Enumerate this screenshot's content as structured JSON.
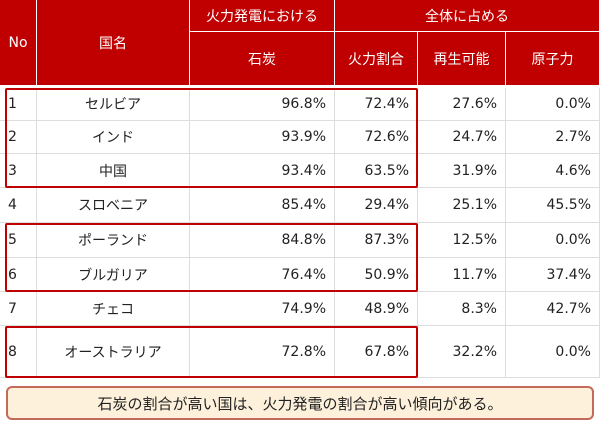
{
  "table": {
    "header": {
      "no": "No",
      "country": "国名",
      "group1": "火力発電における",
      "group2": "全体に占める",
      "columns": [
        "石炭",
        "火力割合",
        "再生可能",
        "原子力"
      ]
    },
    "rows": [
      [
        "1",
        "セルビア",
        "96.8%",
        "72.4%",
        "27.6%",
        "0.0%"
      ],
      [
        "2",
        "インド",
        "93.9%",
        "72.6%",
        "24.7%",
        "2.7%"
      ],
      [
        "3",
        "中国",
        "93.4%",
        "63.5%",
        "31.9%",
        "4.6%"
      ],
      [
        "4",
        "スロベニア",
        "85.4%",
        "29.4%",
        "25.1%",
        "45.5%"
      ],
      [
        "5",
        "ポーランド",
        "84.8%",
        "87.3%",
        "12.5%",
        "0.0%"
      ],
      [
        "6",
        "ブルガリア",
        "76.4%",
        "50.9%",
        "11.7%",
        "37.4%"
      ],
      [
        "7",
        "チェコ",
        "74.9%",
        "48.9%",
        "8.3%",
        "42.7%"
      ],
      [
        "8",
        "オーストラリア",
        "72.8%",
        "67.8%",
        "32.2%",
        "0.0%"
      ]
    ]
  },
  "note": "石炭の割合が高い国は、火力発電の割合が高い傾向がある。"
}
